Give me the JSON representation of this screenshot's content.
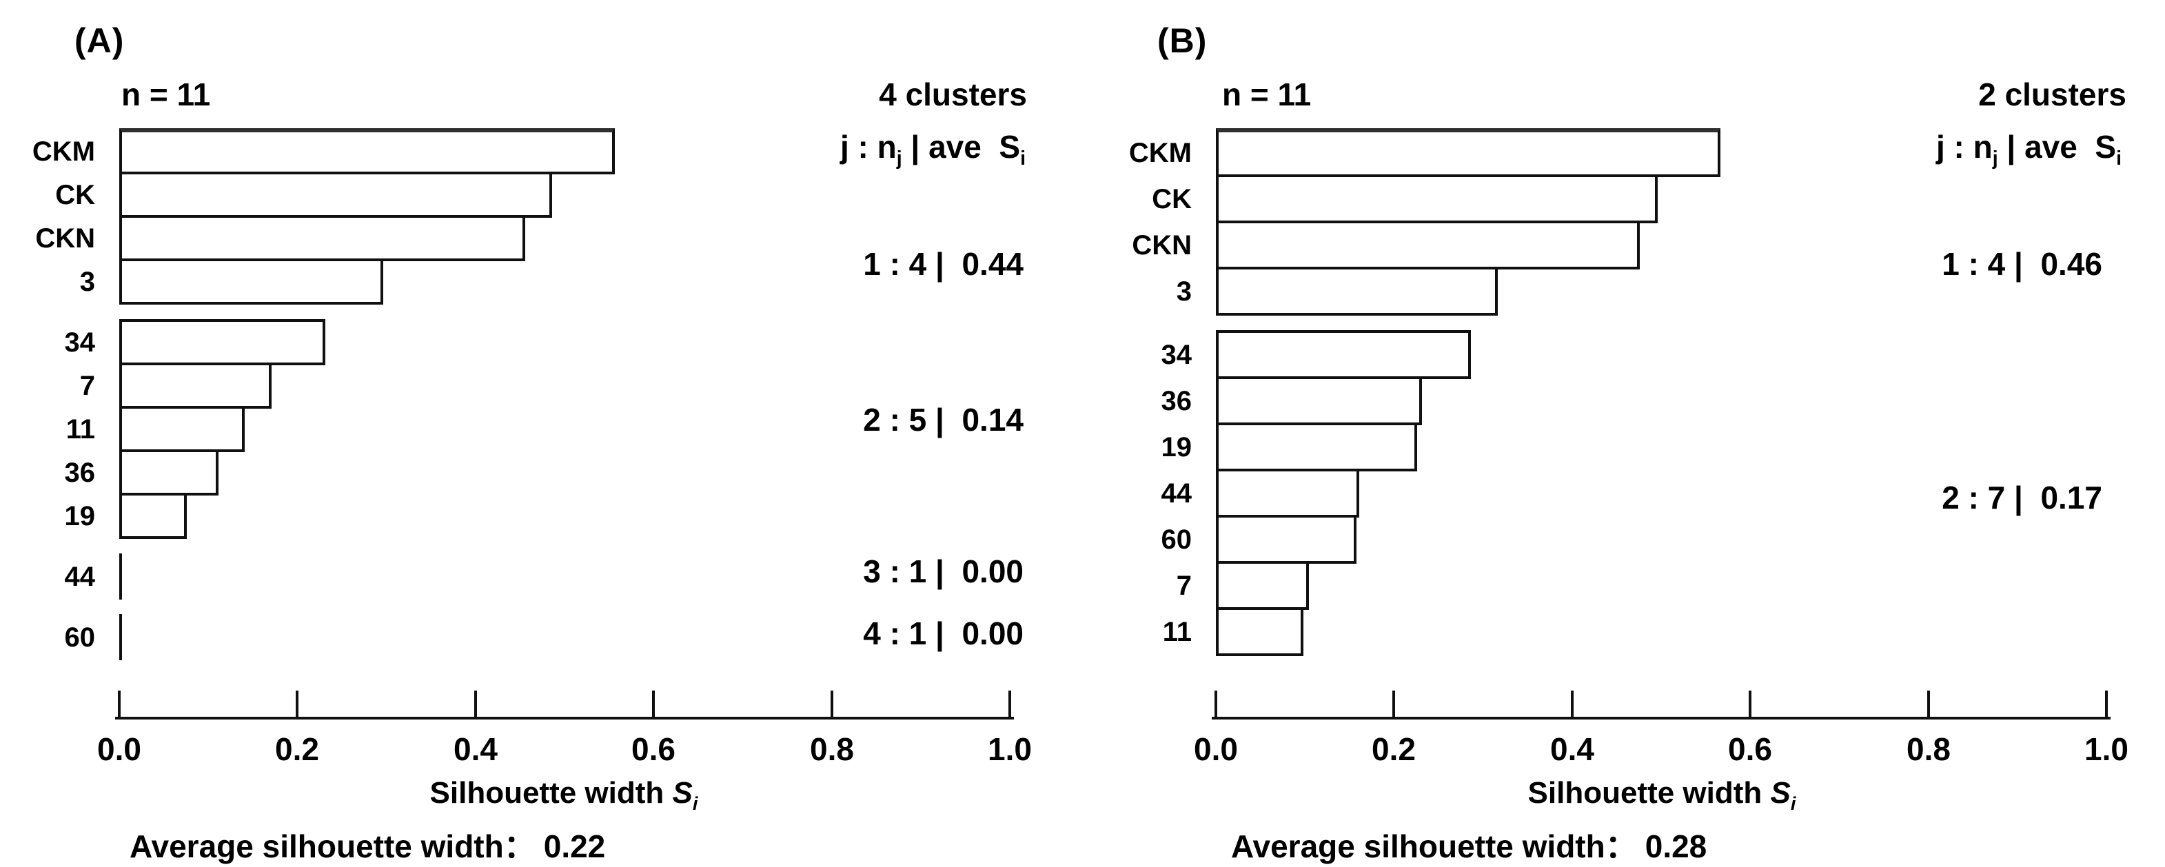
{
  "page": {
    "background": "#ffffff",
    "text_color": "#000000",
    "bar_fill": "#ffffff",
    "bar_border": "#101010"
  },
  "chart_data": [
    {
      "type": "bar",
      "orientation": "horizontal",
      "panel_tag": "(A)",
      "sample_size_label": "n = 11",
      "clusters_label": "4 clusters",
      "legend_header": {
        "prefix": "j : n",
        "prefix_sub": "j",
        "middle": " | ave  S",
        "middle_sub": "i"
      },
      "categories": [
        "CKM",
        "CK",
        "CKN",
        "3",
        "34",
        "7",
        "11",
        "36",
        "19",
        "44",
        "60"
      ],
      "values": [
        0.55,
        0.48,
        0.45,
        0.29,
        0.225,
        0.165,
        0.135,
        0.105,
        0.07,
        0.0,
        0.0
      ],
      "cluster_of": [
        1,
        1,
        1,
        1,
        2,
        2,
        2,
        2,
        2,
        3,
        4
      ],
      "cluster_annotations": [
        "1 : 4 |  0.44",
        "2 : 5 |  0.14",
        "3 : 1 |  0.00",
        "4 : 1 |  0.00"
      ],
      "x_ticks": [
        "0.0",
        "0.2",
        "0.4",
        "0.6",
        "0.8",
        "1.0"
      ],
      "xlim": [
        0.0,
        1.0
      ],
      "grid": false,
      "xlabel": {
        "text": "Silhouette width ",
        "symbol": "S",
        "symbol_sub": "i"
      },
      "average_label": "Average silhouette width：",
      "average_value": "0.22"
    },
    {
      "type": "bar",
      "orientation": "horizontal",
      "panel_tag": "(B)",
      "sample_size_label": "n = 11",
      "clusters_label": "2 clusters",
      "legend_header": {
        "prefix": "j : n",
        "prefix_sub": "j",
        "middle": " | ave  S",
        "middle_sub": "i"
      },
      "categories": [
        "CKM",
        "CK",
        "CKN",
        "3",
        "34",
        "36",
        "19",
        "44",
        "60",
        "7",
        "11"
      ],
      "values": [
        0.56,
        0.49,
        0.47,
        0.31,
        0.28,
        0.225,
        0.22,
        0.155,
        0.152,
        0.098,
        0.092
      ],
      "cluster_of": [
        1,
        1,
        1,
        1,
        2,
        2,
        2,
        2,
        2,
        2,
        2
      ],
      "cluster_annotations": [
        "1 : 4 |  0.46",
        "2 : 7 |  0.17"
      ],
      "x_ticks": [
        "0.0",
        "0.2",
        "0.4",
        "0.6",
        "0.8",
        "1.0"
      ],
      "xlim": [
        0.0,
        1.0
      ],
      "grid": false,
      "xlabel": {
        "text": "Silhouette width ",
        "symbol": "S",
        "symbol_sub": "i"
      },
      "average_label": "Average silhouette width：",
      "average_value": "0.28"
    }
  ]
}
